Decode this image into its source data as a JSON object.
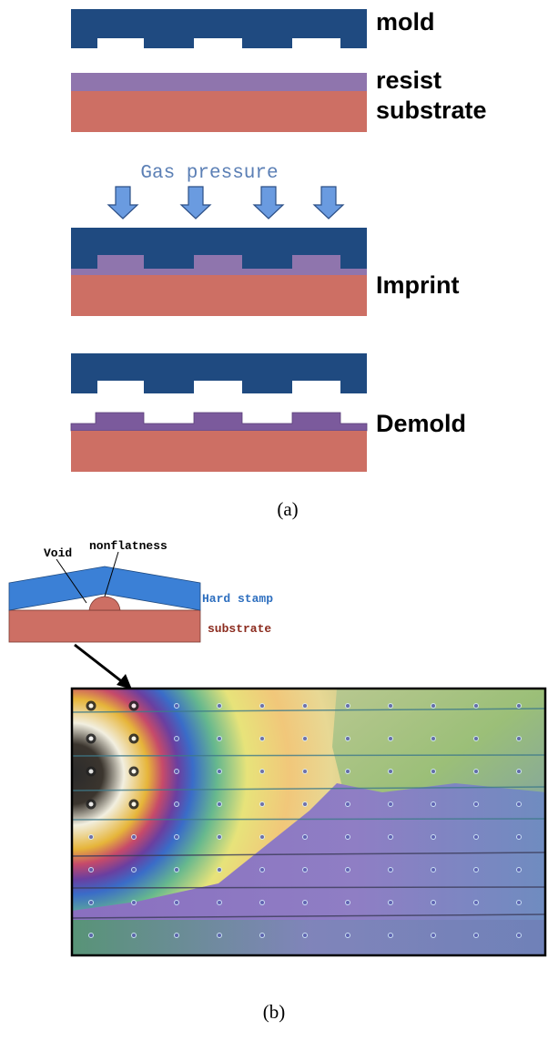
{
  "panel_a": {
    "mold": "mold",
    "resist": "resist",
    "substrate": "substrate",
    "gas_pressure": "Gas pressure",
    "imprint": "Imprint",
    "demold": "Demold",
    "caption": "(a)"
  },
  "panel_b": {
    "void": "Void",
    "nonflatness": "nonflatness",
    "hard_stamp": "Hard stamp",
    "substrate": "substrate",
    "caption": "(b)"
  }
}
